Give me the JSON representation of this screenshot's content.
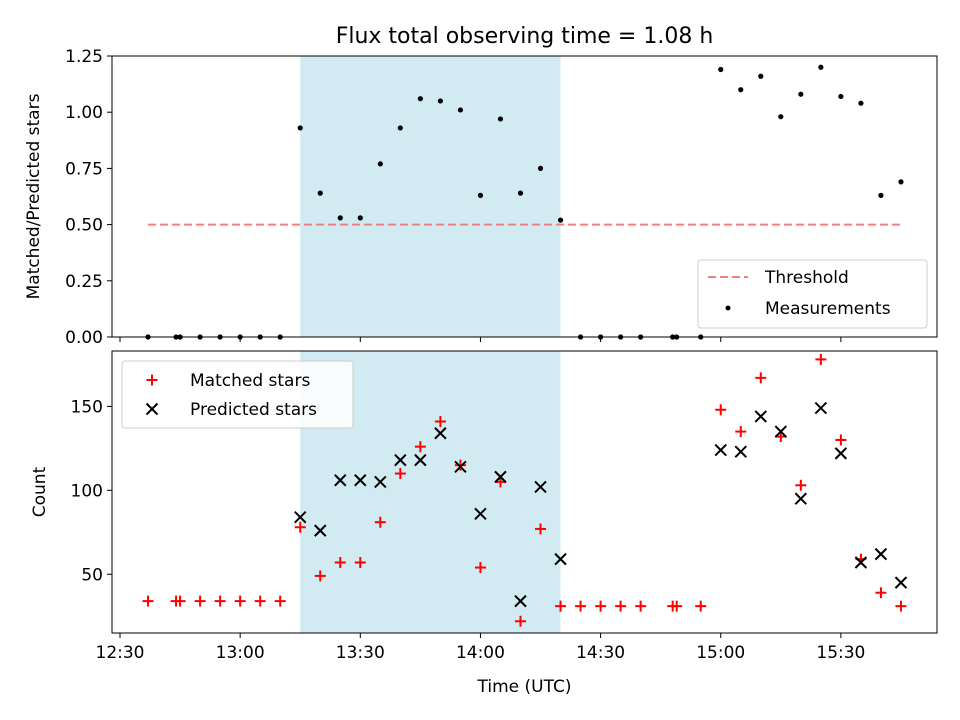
{
  "chart_data": [
    {
      "type": "scatter",
      "title": "Flux total observing time = 1.08 h",
      "ylabel": "Matched/Predicted stars",
      "xlabel": "",
      "xlim": [
        "12:28",
        "15:54"
      ],
      "ylim": [
        0,
        1.25
      ],
      "yticks": [
        "0.00",
        "0.25",
        "0.50",
        "0.75",
        "1.00",
        "1.25"
      ],
      "grid": false,
      "legend_position": "lower right",
      "shaded_region": {
        "start": "13:15",
        "end": "14:20",
        "color": "#add8e6"
      },
      "threshold": {
        "name": "Threshold",
        "value": 0.5,
        "x_start": "12:37",
        "x_end": "15:45",
        "color": "#f08080",
        "style": "dashed"
      },
      "series": [
        {
          "name": "Measurements",
          "marker": "dot",
          "color": "#000000",
          "x": [
            "12:37",
            "12:44",
            "12:45",
            "12:50",
            "12:55",
            "13:00",
            "13:05",
            "13:10",
            "13:15",
            "13:20",
            "13:25",
            "13:30",
            "13:35",
            "13:40",
            "13:45",
            "13:50",
            "13:55",
            "14:00",
            "14:05",
            "14:10",
            "14:15",
            "14:20",
            "14:25",
            "14:30",
            "14:35",
            "14:40",
            "14:48",
            "14:49",
            "14:55",
            "15:00",
            "15:05",
            "15:10",
            "15:15",
            "15:20",
            "15:25",
            "15:30",
            "15:35",
            "15:40",
            "15:45"
          ],
          "y": [
            0,
            0,
            0,
            0,
            0,
            0,
            0,
            0,
            0.93,
            0.64,
            0.53,
            0.53,
            0.77,
            0.93,
            1.06,
            1.05,
            1.01,
            0.63,
            0.97,
            0.64,
            0.75,
            0.52,
            0,
            0,
            0,
            0,
            0,
            0,
            0,
            1.19,
            1.1,
            1.16,
            0.98,
            1.08,
            1.2,
            1.07,
            1.04,
            0.63,
            0.69
          ]
        }
      ]
    },
    {
      "type": "scatter",
      "title": "",
      "ylabel": "Count",
      "xlabel": "Time (UTC)",
      "xlim": [
        "12:28",
        "15:54"
      ],
      "ylim": [
        15,
        183
      ],
      "yticks": [
        "50",
        "100",
        "150"
      ],
      "xticks": [
        "12:30",
        "13:00",
        "13:30",
        "14:00",
        "14:30",
        "15:00",
        "15:30"
      ],
      "grid": false,
      "legend_position": "upper left",
      "shaded_region": {
        "start": "13:15",
        "end": "14:20",
        "color": "#add8e6"
      },
      "series": [
        {
          "name": "Matched stars",
          "marker": "plus",
          "color": "#ff0000",
          "x": [
            "12:37",
            "12:44",
            "12:45",
            "12:50",
            "12:55",
            "13:00",
            "13:05",
            "13:10",
            "13:15",
            "13:20",
            "13:25",
            "13:30",
            "13:35",
            "13:40",
            "13:45",
            "13:50",
            "13:55",
            "14:00",
            "14:05",
            "14:10",
            "14:15",
            "14:20",
            "14:25",
            "14:30",
            "14:35",
            "14:40",
            "14:48",
            "14:49",
            "14:55",
            "15:00",
            "15:05",
            "15:10",
            "15:15",
            "15:20",
            "15:25",
            "15:30",
            "15:35",
            "15:40",
            "15:45"
          ],
          "y": [
            34,
            34,
            34,
            34,
            34,
            34,
            34,
            34,
            78,
            49,
            57,
            57,
            81,
            110,
            126,
            141,
            115,
            54,
            105,
            22,
            77,
            31,
            31,
            31,
            31,
            31,
            31,
            31,
            31,
            148,
            135,
            167,
            132,
            103,
            178,
            130,
            59,
            39,
            31
          ]
        },
        {
          "name": "Predicted stars",
          "marker": "x",
          "color": "#000000",
          "x": [
            "13:15",
            "13:20",
            "13:25",
            "13:30",
            "13:35",
            "13:40",
            "13:45",
            "13:50",
            "13:55",
            "14:00",
            "14:05",
            "14:10",
            "14:15",
            "14:20",
            "15:00",
            "15:05",
            "15:10",
            "15:15",
            "15:20",
            "15:25",
            "15:30",
            "15:35",
            "15:40",
            "15:45"
          ],
          "y": [
            84,
            76,
            106,
            106,
            105,
            118,
            118,
            134,
            114,
            86,
            108,
            34,
            102,
            59,
            124,
            123,
            144,
            135,
            95,
            149,
            122,
            57,
            62,
            45
          ]
        }
      ]
    }
  ]
}
